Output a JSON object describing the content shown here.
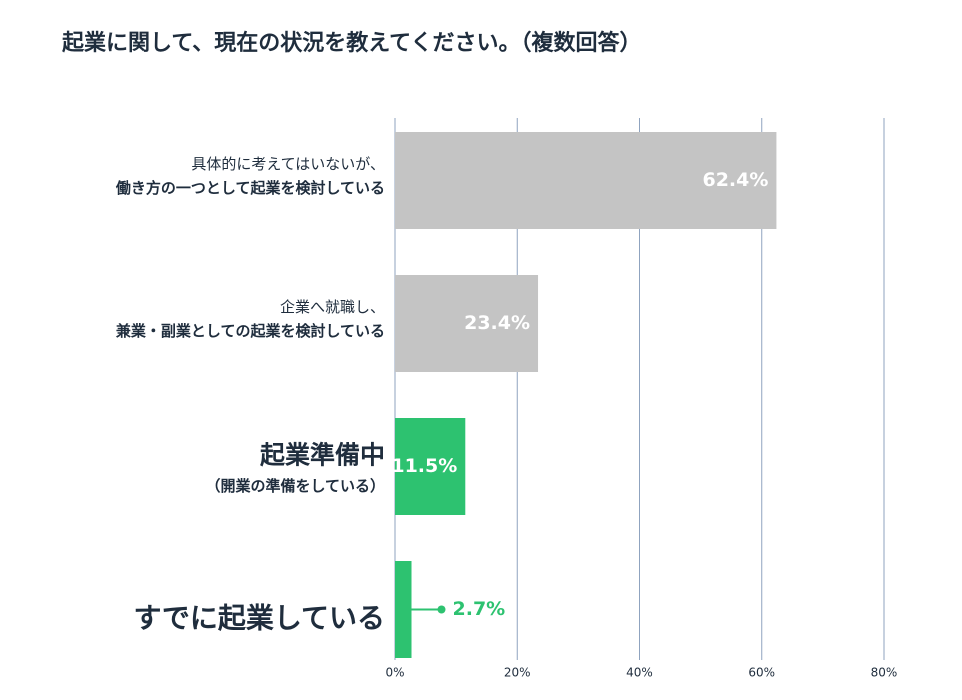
{
  "chart_data": {
    "type": "hbar",
    "title": "起業に関して、現在の状況を教えてください。（複数回答）",
    "categories": [
      [
        "具体的に考えてはいないが、",
        "働き方の一つとして起業を検討している"
      ],
      [
        "企業へ就職し、",
        "兼業・副業としての起業を検討している"
      ],
      [
        "起業準備中",
        "（開業の準備をしている）"
      ],
      [
        "すでに起業している"
      ]
    ],
    "values": [
      62.4,
      23.4,
      11.5,
      2.7
    ],
    "value_labels": [
      "62.4%",
      "23.4%",
      "11.5%",
      "2.7%"
    ],
    "colors": [
      "#c4c4c4",
      "#c4c4c4",
      "#2dc270",
      "#2dc270"
    ],
    "xlim": [
      0,
      80
    ],
    "xticks": [
      {
        "value": 0,
        "label": "0%"
      },
      {
        "value": 20,
        "label": "20%"
      },
      {
        "value": 40,
        "label": "40%"
      },
      {
        "value": 60,
        "label": "60%"
      },
      {
        "value": 80,
        "label": "80%"
      }
    ],
    "grid": true
  }
}
